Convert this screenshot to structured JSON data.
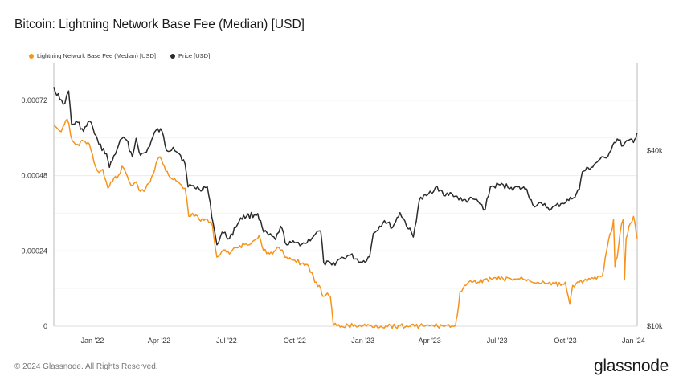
{
  "title": "Bitcoin: Lightning Network Base Fee (Median) [USD]",
  "footer": "© 2024 Glassnode. All Rights Reserved.",
  "brand": "glassnode",
  "colors": {
    "fee": "#f7931a",
    "price": "#2b2b2b",
    "grid": "#ececec"
  },
  "chart_data": {
    "type": "line",
    "x_range": [
      "2021-11-10",
      "2024-01-06"
    ],
    "x_ticks": [
      {
        "date": "2022-01-01",
        "label": "Jan '22"
      },
      {
        "date": "2022-04-01",
        "label": "Apr '22"
      },
      {
        "date": "2022-07-01",
        "label": "Jul '22"
      },
      {
        "date": "2022-10-01",
        "label": "Oct '22"
      },
      {
        "date": "2023-01-01",
        "label": "Jan '23"
      },
      {
        "date": "2023-04-01",
        "label": "Apr '23"
      },
      {
        "date": "2023-07-01",
        "label": "Jul '23"
      },
      {
        "date": "2023-10-01",
        "label": "Oct '23"
      },
      {
        "date": "2024-01-01",
        "label": "Jan '24"
      }
    ],
    "y_left": {
      "min": 0,
      "max": 0.00084,
      "ticks": [
        0,
        0.00024,
        0.00048,
        0.00072
      ],
      "tick_labels": [
        "0",
        "0.00024",
        "0.00048",
        "0.00072"
      ]
    },
    "y_right": {
      "scale": "log",
      "min": 10000,
      "max": 80000,
      "ticks": [
        10000,
        40000
      ],
      "tick_labels": [
        "$10k",
        "$40k"
      ]
    },
    "series": [
      {
        "name": "Lightning Network Base Fee (Median) [USD]",
        "axis": "left",
        "color": "#f7931a",
        "points": [
          [
            "2021-11-10",
            0.00064
          ],
          [
            "2021-11-15",
            0.00063
          ],
          [
            "2021-11-20",
            0.00062
          ],
          [
            "2021-11-28",
            0.00066
          ],
          [
            "2021-12-05",
            0.00059
          ],
          [
            "2021-12-12",
            0.00058
          ],
          [
            "2021-12-20",
            0.00059
          ],
          [
            "2021-12-28",
            0.00058
          ],
          [
            "2022-01-05",
            0.00051
          ],
          [
            "2022-01-10",
            0.00049
          ],
          [
            "2022-01-15",
            0.0005
          ],
          [
            "2022-01-22",
            0.00044
          ],
          [
            "2022-01-28",
            0.00046
          ],
          [
            "2022-02-05",
            0.00048
          ],
          [
            "2022-02-10",
            0.00051
          ],
          [
            "2022-02-15",
            0.00049
          ],
          [
            "2022-02-22",
            0.00045
          ],
          [
            "2022-03-01",
            0.00046
          ],
          [
            "2022-03-07",
            0.00043
          ],
          [
            "2022-03-14",
            0.00044
          ],
          [
            "2022-03-20",
            0.00046
          ],
          [
            "2022-03-28",
            0.00052
          ],
          [
            "2022-04-02",
            0.00054
          ],
          [
            "2022-04-08",
            0.00051
          ],
          [
            "2022-04-14",
            0.00048
          ],
          [
            "2022-04-22",
            0.00047
          ],
          [
            "2022-05-01",
            0.00045
          ],
          [
            "2022-05-06",
            0.00044
          ],
          [
            "2022-05-11",
            0.00035
          ],
          [
            "2022-05-16",
            0.00036
          ],
          [
            "2022-05-25",
            0.00034
          ],
          [
            "2022-06-05",
            0.00034
          ],
          [
            "2022-06-12",
            0.00032
          ],
          [
            "2022-06-18",
            0.00022
          ],
          [
            "2022-06-25",
            0.00024
          ],
          [
            "2022-07-05",
            0.00023
          ],
          [
            "2022-07-15",
            0.00025
          ],
          [
            "2022-07-25",
            0.00026
          ],
          [
            "2022-08-05",
            0.00027
          ],
          [
            "2022-08-14",
            0.00029
          ],
          [
            "2022-08-20",
            0.00024
          ],
          [
            "2022-09-01",
            0.00023
          ],
          [
            "2022-09-10",
            0.00025
          ],
          [
            "2022-09-20",
            0.00022
          ],
          [
            "2022-10-01",
            0.00021
          ],
          [
            "2022-10-10",
            0.0002
          ],
          [
            "2022-10-20",
            0.00019
          ],
          [
            "2022-10-28",
            0.00014
          ],
          [
            "2022-11-05",
            0.00012
          ],
          [
            "2022-11-08",
            9.5e-05
          ],
          [
            "2022-11-12",
            0.0001
          ],
          [
            "2022-11-18",
            9.5e-05
          ],
          [
            "2022-11-22",
            3e-06
          ],
          [
            "2022-11-27",
            1e-06
          ],
          [
            "2023-01-01",
            1e-06
          ],
          [
            "2023-02-01",
            1e-06
          ],
          [
            "2023-03-01",
            1e-06
          ],
          [
            "2023-04-01",
            1e-06
          ],
          [
            "2023-05-01",
            1e-06
          ],
          [
            "2023-05-06",
            2e-06
          ],
          [
            "2023-05-08",
            3e-05
          ],
          [
            "2023-05-12",
            0.00011
          ],
          [
            "2023-05-20",
            0.00013
          ],
          [
            "2023-05-28",
            0.00014
          ],
          [
            "2023-06-05",
            0.00014
          ],
          [
            "2023-06-15",
            0.00015
          ],
          [
            "2023-06-25",
            0.00015
          ],
          [
            "2023-07-05",
            0.00015
          ],
          [
            "2023-07-20",
            0.00015
          ],
          [
            "2023-08-05",
            0.00015
          ],
          [
            "2023-08-25",
            0.00014
          ],
          [
            "2023-09-10",
            0.00014
          ],
          [
            "2023-09-25",
            0.00013
          ],
          [
            "2023-10-01",
            0.00014
          ],
          [
            "2023-10-07",
            7e-05
          ],
          [
            "2023-10-11",
            0.00013
          ],
          [
            "2023-10-20",
            0.00014
          ],
          [
            "2023-10-28",
            0.00015
          ],
          [
            "2023-11-04",
            0.00015
          ],
          [
            "2023-11-12",
            0.00015
          ],
          [
            "2023-11-20",
            0.00016
          ],
          [
            "2023-11-24",
            0.00022
          ],
          [
            "2023-11-28",
            0.00027
          ],
          [
            "2023-12-02",
            0.0003
          ],
          [
            "2023-12-05",
            0.00034
          ],
          [
            "2023-12-07",
            0.00019
          ],
          [
            "2023-12-10",
            0.00022
          ],
          [
            "2023-12-14",
            0.0003
          ],
          [
            "2023-12-18",
            0.00034
          ],
          [
            "2023-12-20",
            0.00015
          ],
          [
            "2023-12-22",
            0.00028
          ],
          [
            "2023-12-26",
            0.00032
          ],
          [
            "2024-01-01",
            0.00035
          ],
          [
            "2024-01-04",
            0.00031
          ],
          [
            "2024-01-06",
            0.00028
          ]
        ]
      },
      {
        "name": "Price [USD]",
        "axis": "right",
        "color": "#2b2b2b",
        "points": [
          [
            "2021-11-10",
            66000
          ],
          [
            "2021-11-18",
            60000
          ],
          [
            "2021-11-25",
            58000
          ],
          [
            "2021-11-30",
            64000
          ],
          [
            "2021-12-04",
            49000
          ],
          [
            "2021-12-12",
            50000
          ],
          [
            "2021-12-20",
            46500
          ],
          [
            "2021-12-28",
            50500
          ],
          [
            "2022-01-02",
            47500
          ],
          [
            "2022-01-10",
            41800
          ],
          [
            "2022-01-20",
            39000
          ],
          [
            "2022-01-24",
            35000
          ],
          [
            "2022-02-05",
            41500
          ],
          [
            "2022-02-10",
            44000
          ],
          [
            "2022-02-16",
            43500
          ],
          [
            "2022-02-24",
            38000
          ],
          [
            "2022-03-01",
            44000
          ],
          [
            "2022-03-07",
            38500
          ],
          [
            "2022-03-15",
            39500
          ],
          [
            "2022-03-28",
            47000
          ],
          [
            "2022-04-05",
            46500
          ],
          [
            "2022-04-11",
            40000
          ],
          [
            "2022-04-20",
            41000
          ],
          [
            "2022-04-30",
            38500
          ],
          [
            "2022-05-06",
            36000
          ],
          [
            "2022-05-10",
            30000
          ],
          [
            "2022-05-15",
            30300
          ],
          [
            "2022-05-25",
            29500
          ],
          [
            "2022-06-05",
            30000
          ],
          [
            "2022-06-13",
            22500
          ],
          [
            "2022-06-18",
            19000
          ],
          [
            "2022-06-25",
            21000
          ],
          [
            "2022-07-05",
            20000
          ],
          [
            "2022-07-20",
            23500
          ],
          [
            "2022-07-28",
            23800
          ],
          [
            "2022-08-12",
            24300
          ],
          [
            "2022-08-20",
            21000
          ],
          [
            "2022-09-05",
            19800
          ],
          [
            "2022-09-12",
            22000
          ],
          [
            "2022-09-20",
            19000
          ],
          [
            "2022-10-01",
            19300
          ],
          [
            "2022-10-15",
            19200
          ],
          [
            "2022-10-29",
            20700
          ],
          [
            "2022-11-05",
            21200
          ],
          [
            "2022-11-09",
            16500
          ],
          [
            "2022-11-20",
            16200
          ],
          [
            "2022-12-01",
            17000
          ],
          [
            "2022-12-15",
            17500
          ],
          [
            "2022-12-31",
            16550
          ],
          [
            "2023-01-10",
            17300
          ],
          [
            "2023-01-15",
            20800
          ],
          [
            "2023-01-30",
            23000
          ],
          [
            "2023-02-10",
            21800
          ],
          [
            "2023-02-20",
            24500
          ],
          [
            "2023-03-10",
            20200
          ],
          [
            "2023-03-18",
            27000
          ],
          [
            "2023-03-28",
            28000
          ],
          [
            "2023-04-11",
            30200
          ],
          [
            "2023-04-20",
            28000
          ],
          [
            "2023-05-01",
            28500
          ],
          [
            "2023-05-15",
            26900
          ],
          [
            "2023-06-01",
            27200
          ],
          [
            "2023-06-15",
            25200
          ],
          [
            "2023-06-22",
            30000
          ],
          [
            "2023-07-05",
            30500
          ],
          [
            "2023-07-20",
            29900
          ],
          [
            "2023-08-10",
            29500
          ],
          [
            "2023-08-18",
            26100
          ],
          [
            "2023-09-01",
            26000
          ],
          [
            "2023-09-12",
            25200
          ],
          [
            "2023-09-25",
            26300
          ],
          [
            "2023-10-10",
            27300
          ],
          [
            "2023-10-20",
            29500
          ],
          [
            "2023-10-24",
            33800
          ],
          [
            "2023-11-05",
            35000
          ],
          [
            "2023-11-15",
            37000
          ],
          [
            "2023-11-25",
            37700
          ],
          [
            "2023-12-04",
            41800
          ],
          [
            "2023-12-10",
            43800
          ],
          [
            "2023-12-18",
            41500
          ],
          [
            "2023-12-25",
            43300
          ],
          [
            "2024-01-01",
            42600
          ],
          [
            "2024-01-04",
            44000
          ],
          [
            "2024-01-06",
            46000
          ]
        ]
      }
    ]
  }
}
